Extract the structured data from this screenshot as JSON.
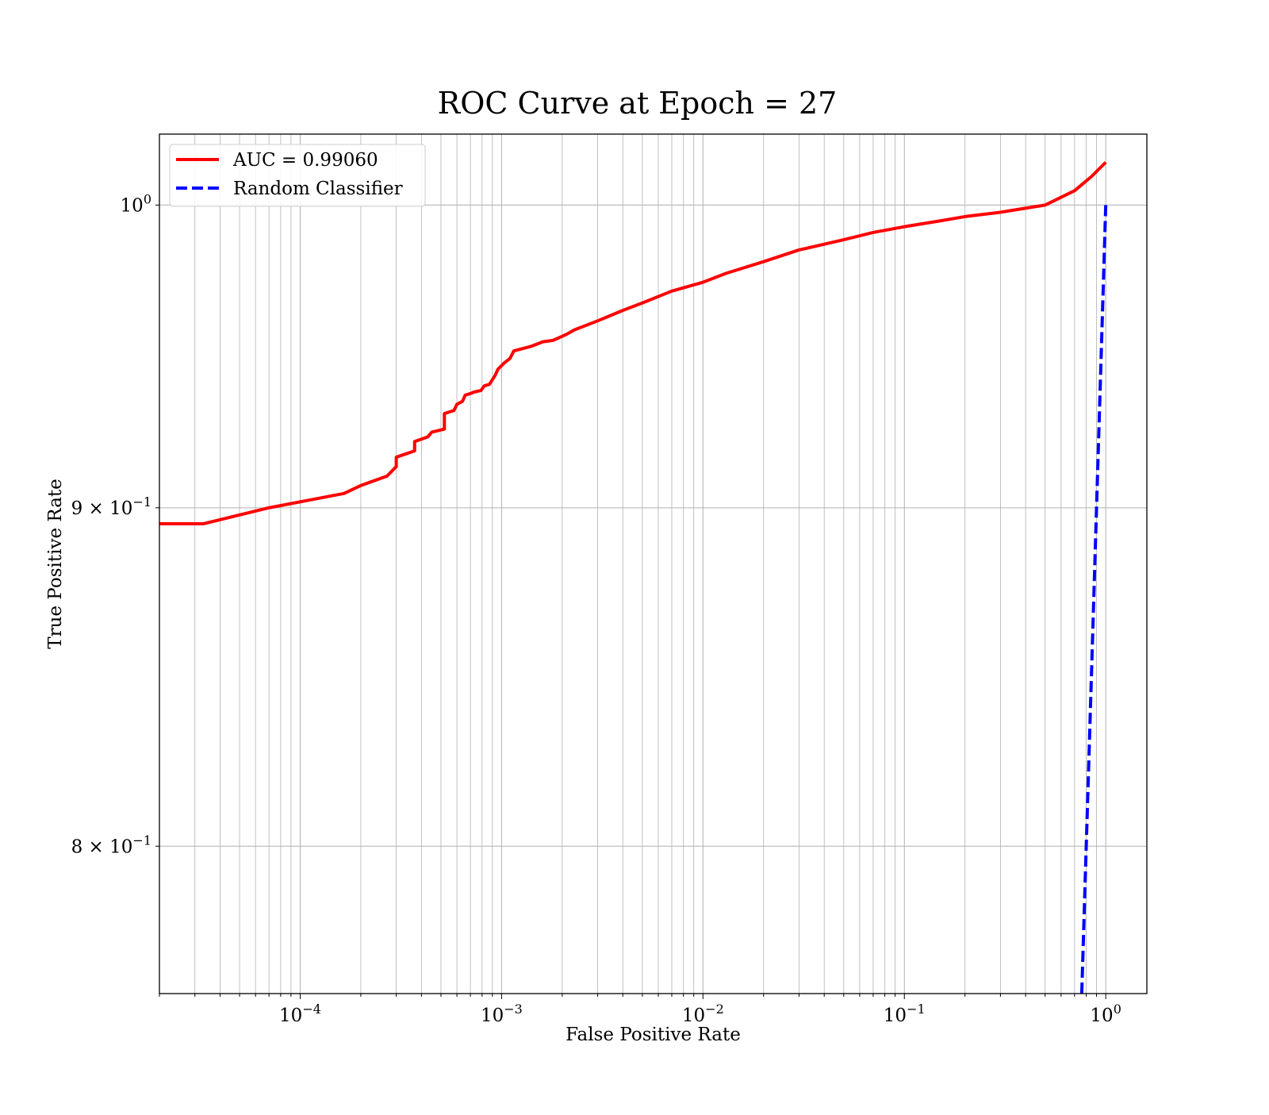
{
  "chart_data": {
    "type": "line",
    "title": "ROC Curve at Epoch = 27",
    "xlabel": "False Positive Rate",
    "ylabel": "True Positive Rate",
    "xscale": "log",
    "yscale": "log",
    "xlim": [
      2e-05,
      1.6
    ],
    "ylim": [
      0.76,
      1.025
    ],
    "grid": true,
    "grid_minor": true,
    "legend_position": "top-left",
    "x_ticks": [
      {
        "value": 0.0001,
        "base": "10",
        "exp": "−4"
      },
      {
        "value": 0.001,
        "base": "10",
        "exp": "−3"
      },
      {
        "value": 0.01,
        "base": "10",
        "exp": "−2"
      },
      {
        "value": 0.1,
        "base": "10",
        "exp": "−1"
      },
      {
        "value": 1,
        "base": "10",
        "exp": "0"
      }
    ],
    "y_ticks": [
      {
        "value": 1.0,
        "mantissa": "",
        "base": "10",
        "exp": "0"
      },
      {
        "value": 0.9,
        "mantissa": "9 × ",
        "base": "10",
        "exp": "−1"
      },
      {
        "value": 0.8,
        "mantissa": "8 × ",
        "base": "10",
        "exp": "−1"
      }
    ],
    "series": [
      {
        "name": "AUC = 0.99060",
        "color": "#ff0000",
        "style": "solid",
        "x": [
          2e-05,
          3.3e-05,
          7e-05,
          0.000165,
          0.0002,
          0.00027,
          0.0003,
          0.0003,
          0.00037,
          0.00037,
          0.00043,
          0.00045,
          0.00052,
          0.00052,
          0.00058,
          0.0006,
          0.00064,
          0.00066,
          0.0007,
          0.00073,
          0.00079,
          0.00082,
          0.00087,
          0.0009,
          0.00093,
          0.00096,
          0.00103,
          0.0011,
          0.00115,
          0.0014,
          0.0016,
          0.0018,
          0.0021,
          0.0023,
          0.003,
          0.004,
          0.005,
          0.007,
          0.01,
          0.013,
          0.02,
          0.03,
          0.05,
          0.07,
          0.1,
          0.15,
          0.2,
          0.3,
          0.5,
          0.7,
          0.85,
          1.0
        ],
        "y": [
          0.895,
          0.895,
          0.9,
          0.9045,
          0.907,
          0.91,
          0.913,
          0.916,
          0.918,
          0.921,
          0.9225,
          0.924,
          0.925,
          0.93,
          0.931,
          0.933,
          0.934,
          0.936,
          0.9365,
          0.937,
          0.9375,
          0.939,
          0.9395,
          0.941,
          0.9425,
          0.9445,
          0.9465,
          0.948,
          0.9505,
          0.952,
          0.9535,
          0.954,
          0.956,
          0.9575,
          0.9605,
          0.964,
          0.9665,
          0.9705,
          0.9735,
          0.9765,
          0.9805,
          0.9845,
          0.988,
          0.9905,
          0.9925,
          0.9945,
          0.996,
          0.9975,
          1.0,
          1.005,
          1.01,
          1.015
        ]
      },
      {
        "name": "Random Classifier",
        "color": "#0000ff",
        "style": "dashed",
        "x": [
          0.76,
          1.0
        ],
        "y": [
          0.76,
          1.0
        ]
      }
    ]
  }
}
